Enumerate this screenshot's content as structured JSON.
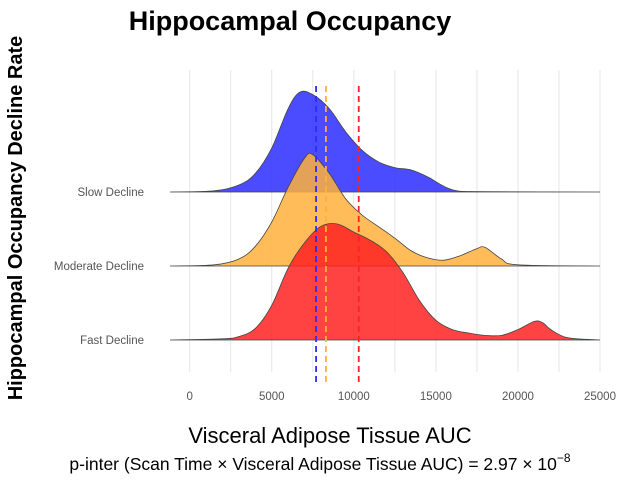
{
  "chart_data": {
    "type": "area",
    "subtype": "ridgeline-density",
    "title": "Hippocampal Occupancy",
    "xlabel": "Visceral Adipose Tissue AUC",
    "ylabel": "Hippocampal Occupancy Decline Rate",
    "footnote": "p-inter (Scan Time × Visceral Adipose Tissue AUC) = 2.97 × 10",
    "footnote_exponent": "−8",
    "xlim": [
      -1200,
      25000
    ],
    "x_ticks": [
      0,
      5000,
      10000,
      15000,
      20000,
      25000
    ],
    "x_tick_labels": [
      "0",
      "5000",
      "10000",
      "15000",
      "20000",
      "25000"
    ],
    "grid": true,
    "categories": [
      "Slow Decline",
      "Moderate Decline",
      "Fast Decline"
    ],
    "series": [
      {
        "name": "Slow Decline",
        "color": "#2b2bff",
        "mean": 7700,
        "x": [
          -1200,
          1500,
          3000,
          4000,
          5000,
          6000,
          6700,
          7500,
          8500,
          9500,
          10500,
          11500,
          12500,
          13500,
          14500,
          16000,
          18000,
          25000
        ],
        "y": [
          0,
          0.01,
          0.06,
          0.16,
          0.38,
          0.72,
          0.86,
          0.84,
          0.72,
          0.52,
          0.36,
          0.26,
          0.21,
          0.19,
          0.13,
          0.02,
          0.003,
          0
        ]
      },
      {
        "name": "Moderate Decline",
        "color": "#ffb03b",
        "mean": 8300,
        "x": [
          -1200,
          1500,
          3000,
          4000,
          5000,
          6000,
          7000,
          7500,
          8500,
          9500,
          10500,
          11500,
          12500,
          13500,
          14500,
          15500,
          16500,
          17500,
          18000,
          19000,
          20000,
          25000
        ],
        "y": [
          0,
          0.01,
          0.06,
          0.17,
          0.38,
          0.68,
          0.93,
          0.96,
          0.8,
          0.58,
          0.44,
          0.34,
          0.24,
          0.13,
          0.07,
          0.05,
          0.09,
          0.15,
          0.16,
          0.06,
          0.01,
          0
        ]
      },
      {
        "name": "Fast Decline",
        "color": "#ff2222",
        "mean": 10300,
        "x": [
          -1200,
          2000,
          3000,
          4000,
          5000,
          6000,
          7000,
          8000,
          9000,
          10000,
          11000,
          12000,
          13000,
          14000,
          15000,
          16000,
          17000,
          18000,
          19000,
          20000,
          21000,
          21500,
          22000,
          23000,
          25000
        ],
        "y": [
          0,
          0.01,
          0.03,
          0.1,
          0.3,
          0.62,
          0.84,
          0.98,
          1.0,
          0.93,
          0.86,
          0.76,
          0.58,
          0.34,
          0.17,
          0.09,
          0.06,
          0.04,
          0.04,
          0.09,
          0.16,
          0.15,
          0.09,
          0.02,
          0
        ]
      }
    ]
  }
}
